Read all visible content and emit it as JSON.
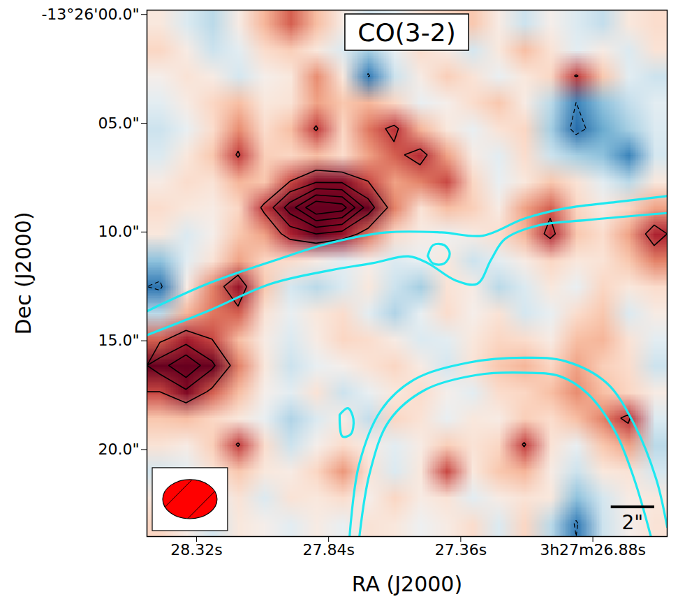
{
  "chart_data": {
    "type": "heatmap_contour",
    "title": "CO(3-2)",
    "x_label": "RA (J2000)",
    "y_label": "Dec (J2000)",
    "xlim": [
      28.5,
      26.61
    ],
    "ylim": [
      -0.2,
      24.0
    ],
    "xticks": [
      {
        "value": 28.32,
        "label": "28.32s"
      },
      {
        "value": 27.84,
        "label": "27.84s"
      },
      {
        "value": 27.36,
        "label": "27.36s"
      },
      {
        "value": 26.88,
        "label": "3h27m26.88s"
      }
    ],
    "yticks": [
      {
        "value": 0,
        "label": "-13°26'00.0\""
      },
      {
        "value": 5,
        "label": "05.0\""
      },
      {
        "value": 10,
        "label": "10.0\""
      },
      {
        "value": 15,
        "label": "15.0\""
      },
      {
        "value": 20,
        "label": "20.0\""
      }
    ],
    "color_range": [
      -3,
      3
    ],
    "contour_levels": [
      2,
      3,
      4,
      5,
      6
    ],
    "negative_levels": [
      -2
    ],
    "grid_values": [
      [
        0.3,
        -0.4,
        -0.8,
        0.2,
        1.0,
        1.8,
        0.9,
        0.2,
        -0.5,
        -0.3,
        0.4,
        0.6,
        0.8,
        0.2,
        -0.6,
        0.1,
        -0.4,
        -0.7,
        0.3,
        0.5
      ],
      [
        0.6,
        0.2,
        -0.6,
        -0.3,
        0.5,
        0.7,
        0.3,
        -0.4,
        -1.0,
        -0.2,
        0.5,
        0.2,
        -0.5,
        0.3,
        0.9,
        0.4,
        -0.3,
        0.2,
        -0.4,
        0.4
      ],
      [
        0.1,
        0.4,
        0.2,
        -0.5,
        0.1,
        0.3,
        1.4,
        0.3,
        -2.1,
        -0.6,
        0.2,
        0.7,
        0.4,
        -0.2,
        0.3,
        0.6,
        2.1,
        0.8,
        -0.3,
        -0.6
      ],
      [
        -0.3,
        0.2,
        0.6,
        0.9,
        0.3,
        0.4,
        1.2,
        0.8,
        1.0,
        0.6,
        -0.2,
        0.1,
        0.5,
        0.8,
        0.2,
        -0.8,
        -2.0,
        -1.2,
        -0.7,
        -0.3
      ],
      [
        -0.6,
        -0.2,
        0.5,
        1.4,
        0.5,
        0.9,
        2.1,
        0.6,
        1.6,
        2.2,
        1.0,
        0.3,
        -0.2,
        0.4,
        0.6,
        -1.0,
        -2.3,
        -1.5,
        -1.0,
        -0.4
      ],
      [
        -0.4,
        0.3,
        0.8,
        2.1,
        0.7,
        0.6,
        0.9,
        0.5,
        1.2,
        1.8,
        2.3,
        1.2,
        0.2,
        -0.3,
        0.5,
        -0.6,
        -1.0,
        -1.2,
        -2.0,
        -0.5
      ],
      [
        0.2,
        0.5,
        0.4,
        1.0,
        0.8,
        2.0,
        2.8,
        2.8,
        2.0,
        1.2,
        1.5,
        2.0,
        0.6,
        -0.2,
        0.3,
        0.8,
        0.4,
        -0.3,
        -0.8,
        0.3
      ],
      [
        0.5,
        0.3,
        0.2,
        0.6,
        2.2,
        4.5,
        7.0,
        6.5,
        3.5,
        1.5,
        0.4,
        0.9,
        0.7,
        0.2,
        1.2,
        1.8,
        0.6,
        0.2,
        0.6,
        1.2
      ],
      [
        0.3,
        -0.4,
        0.1,
        0.8,
        1.2,
        2.4,
        3.0,
        2.6,
        1.6,
        0.5,
        0.2,
        -0.1,
        0.2,
        0.5,
        1.0,
        2.3,
        0.8,
        0.5,
        1.2,
        2.4
      ],
      [
        -1.2,
        -0.3,
        0.4,
        1.2,
        0.6,
        0.5,
        0.2,
        -0.3,
        0.1,
        -0.4,
        -0.2,
        0.3,
        -0.6,
        -0.3,
        0.2,
        0.6,
        0.3,
        0.4,
        0.8,
        1.5
      ],
      [
        -2.2,
        0.2,
        1.5,
        2.6,
        0.8,
        -0.5,
        -0.8,
        -0.4,
        0.3,
        -0.6,
        -1.0,
        0.4,
        0.2,
        -0.8,
        -0.4,
        0.3,
        -0.2,
        0.6,
        0.3,
        0.5
      ],
      [
        -0.8,
        1.0,
        1.6,
        1.8,
        0.4,
        -0.2,
        0.3,
        0.5,
        -0.3,
        -0.9,
        -0.2,
        0.5,
        0.1,
        0.4,
        -0.5,
        -0.2,
        0.5,
        0.8,
        -0.4,
        0.2
      ],
      [
        1.8,
        2.5,
        2.0,
        0.9,
        0.2,
        -0.4,
        0.2,
        0.6,
        0.5,
        0.2,
        -0.4,
        -0.3,
        0.3,
        0.6,
        0.5,
        0.2,
        0.9,
        1.0,
        0.4,
        -0.3
      ],
      [
        3.5,
        5.0,
        3.2,
        1.5,
        0.3,
        -0.6,
        -0.2,
        0.1,
        0.4,
        0.6,
        0.2,
        -0.5,
        0.4,
        0.8,
        1.0,
        0.6,
        1.2,
        0.7,
        0.5,
        -0.6
      ],
      [
        2.0,
        2.8,
        1.8,
        0.9,
        0.1,
        -0.3,
        0.4,
        -0.6,
        -0.2,
        0.3,
        0.5,
        0.1,
        -0.3,
        0.5,
        0.6,
        0.9,
        1.4,
        0.9,
        0.6,
        0.2
      ],
      [
        0.8,
        0.9,
        0.6,
        0.3,
        -0.2,
        -0.9,
        -0.4,
        0.2,
        -0.7,
        0.6,
        0.4,
        -0.2,
        0.3,
        0.2,
        0.7,
        0.5,
        0.9,
        1.5,
        2.2,
        -0.4
      ],
      [
        0.4,
        0.2,
        0.7,
        2.1,
        0.5,
        -0.6,
        0.1,
        0.5,
        0.2,
        -0.3,
        0.2,
        0.7,
        0.4,
        0.6,
        2.1,
        0.4,
        -0.2,
        0.8,
        1.2,
        -0.8
      ],
      [
        -0.5,
        -0.3,
        0.4,
        0.8,
        0.3,
        0.2,
        0.6,
        1.3,
        0.4,
        -0.4,
        0.3,
        2.0,
        0.3,
        0.8,
        1.0,
        0.2,
        -0.6,
        0.3,
        0.4,
        -0.5
      ],
      [
        0.3,
        0.5,
        -0.2,
        0.4,
        -0.4,
        0.4,
        0.3,
        0.5,
        0.1,
        0.6,
        0.2,
        0.4,
        -0.3,
        0.2,
        0.4,
        0.3,
        -1.2,
        -0.5,
        0.2,
        0.3
      ],
      [
        0.6,
        0.2,
        -0.5,
        0.3,
        0.1,
        -0.3,
        0.2,
        -0.2,
        0.4,
        0.3,
        -0.1,
        0.2,
        0.5,
        -0.4,
        0.6,
        -0.8,
        -2.1,
        -0.6,
        0.1,
        0.4
      ]
    ],
    "curves": [
      {
        "color": "#1ee8f0",
        "points": [
          [
            28.5,
            13.64
          ],
          [
            28.28,
            12.38
          ],
          [
            28.03,
            11.28
          ],
          [
            27.83,
            10.49
          ],
          [
            27.63,
            10.02
          ],
          [
            27.43,
            10.02
          ],
          [
            27.28,
            10.17
          ],
          [
            27.13,
            9.39
          ],
          [
            26.98,
            8.91
          ],
          [
            26.78,
            8.6
          ],
          [
            26.61,
            8.35
          ]
        ]
      },
      {
        "color": "#1ee8f0",
        "points": [
          [
            28.5,
            14.74
          ],
          [
            28.28,
            13.64
          ],
          [
            28.05,
            12.38
          ],
          [
            27.83,
            11.75
          ],
          [
            27.68,
            11.43
          ],
          [
            27.55,
            11.12
          ],
          [
            27.48,
            11.43
          ],
          [
            27.38,
            12.22
          ],
          [
            27.3,
            12.38
          ],
          [
            27.25,
            11.28
          ],
          [
            27.2,
            10.33
          ],
          [
            27.08,
            9.7
          ],
          [
            26.9,
            9.45
          ],
          [
            26.61,
            9.13
          ]
        ]
      },
      {
        "color": "#1ee8f0",
        "points": [
          [
            27.48,
            11.1
          ],
          [
            27.46,
            10.6
          ],
          [
            27.42,
            10.6
          ],
          [
            27.4,
            11.0
          ],
          [
            27.42,
            11.45
          ],
          [
            27.46,
            11.45
          ],
          [
            27.48,
            11.1
          ]
        ]
      },
      {
        "color": "#1ee8f0",
        "points": [
          [
            27.8,
            18.4
          ],
          [
            27.77,
            18.1
          ],
          [
            27.75,
            18.6
          ],
          [
            27.76,
            19.3
          ],
          [
            27.79,
            19.4
          ],
          [
            27.8,
            18.4
          ]
        ]
      },
      {
        "color": "#1ee8f0",
        "points": [
          [
            27.765,
            24.2
          ],
          [
            27.73,
            20.72
          ],
          [
            27.65,
            18.2
          ],
          [
            27.53,
            16.79
          ],
          [
            27.33,
            16.0
          ],
          [
            27.13,
            15.78
          ],
          [
            26.98,
            15.94
          ],
          [
            26.83,
            16.94
          ],
          [
            26.73,
            18.83
          ],
          [
            26.65,
            21.35
          ],
          [
            26.61,
            23.56
          ]
        ]
      },
      {
        "color": "#1ee8f0",
        "points": [
          [
            27.73,
            24.2
          ],
          [
            27.69,
            21.04
          ],
          [
            27.62,
            18.68
          ],
          [
            27.49,
            17.26
          ],
          [
            27.3,
            16.57
          ],
          [
            27.13,
            16.47
          ],
          [
            27.0,
            16.63
          ],
          [
            26.9,
            17.42
          ],
          [
            26.8,
            19.15
          ],
          [
            26.73,
            21.35
          ],
          [
            26.665,
            24.2
          ]
        ]
      }
    ],
    "beam": {
      "major": 2.5,
      "minor": 1.8,
      "color": "#ff0000"
    },
    "scalebar": {
      "length": 2,
      "label": "2\""
    }
  }
}
